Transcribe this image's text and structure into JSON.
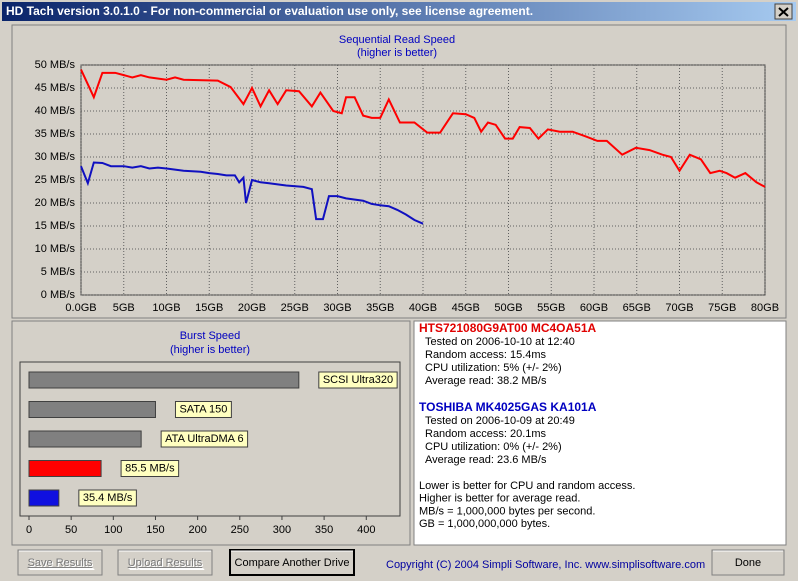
{
  "window": {
    "title": "HD Tach version 3.0.1.0  - For non-commercial or evaluation use only, see license agreement."
  },
  "read_chart": {
    "type": "line",
    "title": "Sequential Read Speed",
    "subtitle": "(higher is better)",
    "xlim": [
      0,
      80
    ],
    "ylim": [
      0,
      50
    ],
    "grid": true,
    "xticks": [
      {
        "value": 0,
        "label": "0.0GB"
      },
      {
        "value": 5,
        "label": "5GB"
      },
      {
        "value": 10,
        "label": "10GB"
      },
      {
        "value": 15,
        "label": "15GB"
      },
      {
        "value": 20,
        "label": "20GB"
      },
      {
        "value": 25,
        "label": "25GB"
      },
      {
        "value": 30,
        "label": "30GB"
      },
      {
        "value": 35,
        "label": "35GB"
      },
      {
        "value": 40,
        "label": "40GB"
      },
      {
        "value": 45,
        "label": "45GB"
      },
      {
        "value": 50,
        "label": "50GB"
      },
      {
        "value": 55,
        "label": "55GB"
      },
      {
        "value": 60,
        "label": "60GB"
      },
      {
        "value": 65,
        "label": "65GB"
      },
      {
        "value": 70,
        "label": "70GB"
      },
      {
        "value": 75,
        "label": "75GB"
      },
      {
        "value": 80,
        "label": "80GB"
      }
    ],
    "yticks": [
      {
        "value": 0,
        "label": "0 MB/s"
      },
      {
        "value": 5,
        "label": "5 MB/s"
      },
      {
        "value": 10,
        "label": "10 MB/s"
      },
      {
        "value": 15,
        "label": "15 MB/s"
      },
      {
        "value": 20,
        "label": "20 MB/s"
      },
      {
        "value": 25,
        "label": "25 MB/s"
      },
      {
        "value": 30,
        "label": "30 MB/s"
      },
      {
        "value": 35,
        "label": "35 MB/s"
      },
      {
        "value": 40,
        "label": "40 MB/s"
      },
      {
        "value": 45,
        "label": "45 MB/s"
      },
      {
        "value": 50,
        "label": "50 MB/s"
      }
    ],
    "series": [
      {
        "color": "#ff0000",
        "x": [
          0,
          1.5,
          2.5,
          4,
          5,
          6,
          7,
          8,
          10,
          11,
          12,
          16,
          17.5,
          19,
          20,
          21,
          22,
          23,
          24,
          25.5,
          27,
          28,
          29.5,
          30.5,
          31,
          32,
          33,
          34,
          35,
          36,
          37.3,
          39,
          40.5,
          42,
          43.5,
          45,
          46,
          46.8,
          47.6,
          48.5,
          49.6,
          50.5,
          51.3,
          52.5,
          53.5,
          54.6,
          56,
          57.5,
          59,
          60.4,
          61.5,
          63.3,
          64.9,
          66.5,
          68,
          69,
          70,
          71.2,
          72.5,
          73.6,
          74.7,
          75.5,
          76.5,
          77.7,
          79,
          80
        ],
        "values": [
          49,
          43,
          48.3,
          48.3,
          47.8,
          47.3,
          47.8,
          47.3,
          46.8,
          47.3,
          46.8,
          46.6,
          45.2,
          41.5,
          45,
          41,
          44.5,
          41.5,
          44.5,
          44.3,
          41,
          44,
          40,
          39.5,
          43,
          43,
          39,
          38.5,
          38.5,
          42.5,
          37.5,
          37.5,
          35.3,
          35.3,
          39.5,
          39.3,
          38.5,
          35.5,
          37.5,
          37,
          34,
          34,
          36.5,
          36.3,
          34,
          36,
          35.5,
          35.5,
          34.5,
          33.5,
          33.5,
          30.5,
          32,
          31.5,
          30.5,
          30,
          27,
          30.5,
          29.5,
          26.5,
          27,
          26.5,
          25.5,
          26.5,
          24.5,
          23.5
        ]
      },
      {
        "color": "#1010c0",
        "x": [
          0,
          0.8,
          1.5,
          2.5,
          3.5,
          5,
          6,
          7,
          8,
          9,
          10,
          12,
          14,
          15,
          16,
          17,
          18,
          18.5,
          19,
          19.3,
          20,
          21,
          22,
          24,
          26,
          27,
          27.5,
          28.3,
          29,
          30,
          31,
          33,
          34,
          35,
          36,
          37,
          38,
          39,
          40
        ],
        "values": [
          28,
          24.3,
          28.8,
          28.7,
          28,
          28,
          27.7,
          28,
          27.5,
          27.7,
          27.5,
          27,
          26.8,
          26.5,
          26.3,
          26,
          26,
          24.5,
          25.5,
          20,
          25,
          24.5,
          24.3,
          23.8,
          23.5,
          23,
          16.5,
          16.5,
          21.5,
          21.5,
          21,
          20.5,
          19.8,
          19.5,
          19.3,
          18.5,
          17.5,
          16.3,
          15.5
        ]
      }
    ]
  },
  "burst_chart": {
    "type": "bar",
    "title": "Burst Speed",
    "subtitle": "(higher is better)",
    "xlim": [
      0,
      440
    ],
    "xticks": [
      0,
      50,
      100,
      150,
      200,
      250,
      300,
      350,
      400
    ],
    "bars": [
      {
        "label": "SCSI Ultra320",
        "value": 320,
        "color": "#808080"
      },
      {
        "label": "SATA 150",
        "value": 150,
        "color": "#808080"
      },
      {
        "label": "ATA UltraDMA 6",
        "value": 133,
        "color": "#808080"
      },
      {
        "value": 85.5,
        "value_label": "85.5 MB/s",
        "color": "#ff0000"
      },
      {
        "value": 35.4,
        "value_label": "35.4 MB/s",
        "color": "#1010e0"
      }
    ]
  },
  "drives": [
    {
      "name": "HTS721080G9AT00  MC4OA51A",
      "color": "#e00000",
      "lines": [
        "Tested on 2006-10-10 at 12:40",
        "Random access: 15.4ms",
        "CPU utilization: 5% (+/- 2%)",
        "Average read: 38.2 MB/s"
      ]
    },
    {
      "name": "TOSHIBA MK4025GAS KA101A",
      "color": "#0000c0",
      "lines": [
        "Tested on 2006-10-09 at 20:49",
        "Random access: 20.1ms",
        "CPU utilization: 0% (+/- 2%)",
        "Average read: 23.6 MB/s"
      ]
    }
  ],
  "notes": [
    "Lower is better for CPU and random access.",
    "Higher is better for average read.",
    "MB/s = 1,000,000 bytes per second.",
    "GB = 1,000,000,000 bytes."
  ],
  "buttons": [
    {
      "label": "Save Results",
      "enabled": false
    },
    {
      "label": "Upload Results",
      "enabled": false
    },
    {
      "label": "Compare Another Drive",
      "enabled": true
    },
    {
      "label": "Done",
      "enabled": true
    }
  ],
  "copyright": "Copyright (C) 2004 Simpli Software, Inc. www.simplisoftware.com"
}
